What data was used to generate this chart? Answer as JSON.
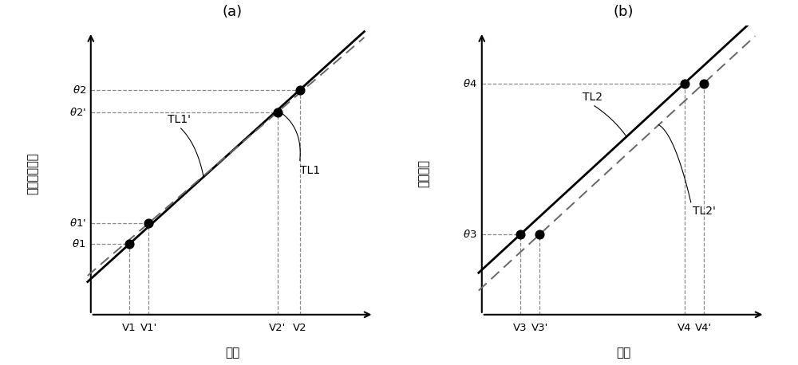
{
  "fig_width": 10.0,
  "fig_height": 4.58,
  "dpi": 100,
  "background_color": "#ffffff",
  "panel_a": {
    "title": "(a)",
    "xlabel": "电压",
    "ylabel": "双肃曲柄角度",
    "V1": 2.2,
    "V1p": 2.8,
    "V2p": 6.8,
    "V2": 7.5,
    "theta1": 3.2,
    "theta1p": 3.85,
    "theta2": 8.0,
    "theta2p": 7.3,
    "line_color_solid": "#000000",
    "line_color_dashed": "#666666",
    "dot_color": "#000000",
    "hv_line_color": "#888888",
    "TL1_label": "TL1",
    "TL1p_label": "TL1'"
  },
  "panel_b": {
    "title": "(b)",
    "xlabel": "电压",
    "ylabel": "动肃角度",
    "V3": 2.2,
    "V3p": 2.8,
    "V4": 7.3,
    "V4p": 7.9,
    "theta3": 3.5,
    "theta4": 8.2,
    "line_color_solid": "#000000",
    "line_color_dashed": "#666666",
    "dot_color": "#000000",
    "hv_line_color": "#888888",
    "TL2_label": "TL2",
    "TL2p_label": "TL2'"
  }
}
